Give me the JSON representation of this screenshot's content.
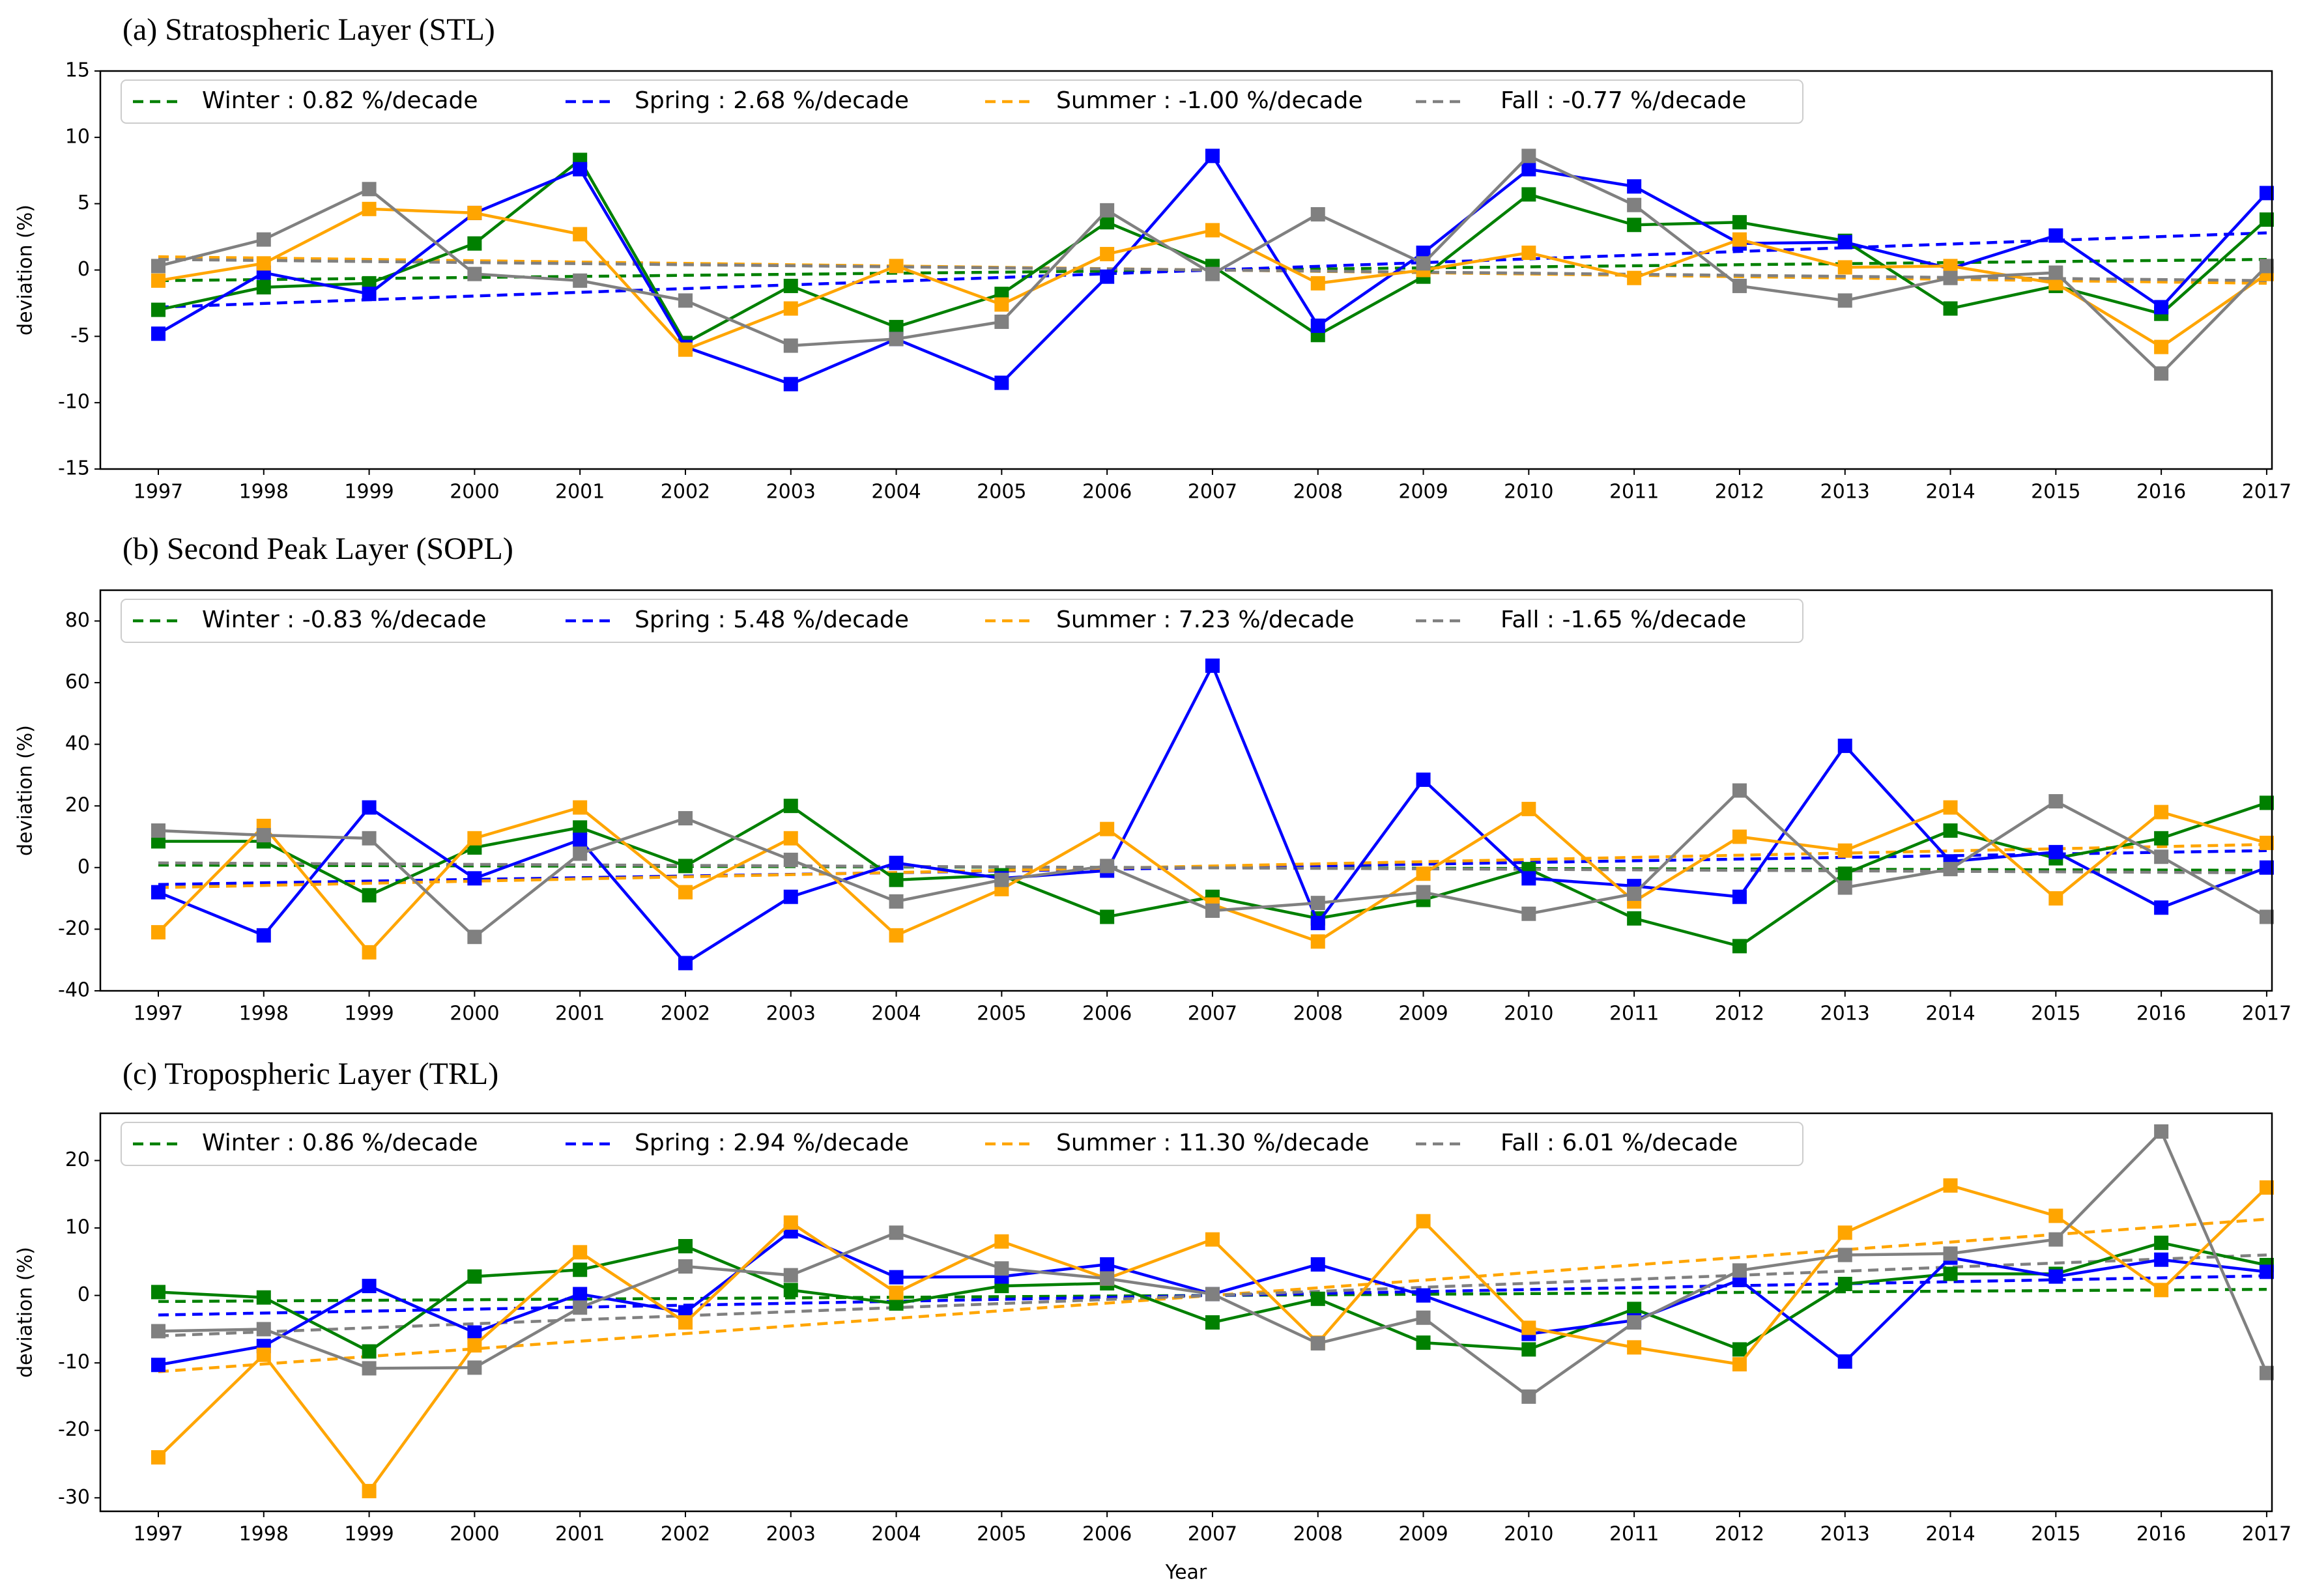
{
  "chart_data": [
    {
      "type": "line",
      "title": "(a) Stratospheric Layer (STL)",
      "ylabel": "deviation (%)",
      "x": [
        1997,
        1998,
        1999,
        2000,
        2001,
        2002,
        2003,
        2004,
        2005,
        2006,
        2007,
        2008,
        2009,
        2010,
        2011,
        2012,
        2013,
        2014,
        2015,
        2016,
        2017
      ],
      "xlim": [
        1996.45,
        2017.05
      ],
      "xticks": [
        1997,
        1998,
        1999,
        2000,
        2001,
        2002,
        2003,
        2004,
        2005,
        2006,
        2007,
        2008,
        2009,
        2010,
        2011,
        2012,
        2013,
        2014,
        2015,
        2016,
        2017
      ],
      "ylim": [
        -15,
        15
      ],
      "yticks": [
        -15,
        -10,
        -5,
        0,
        5,
        10,
        15
      ],
      "series": [
        {
          "name": "Winter : 0.82 %/decade",
          "color": "#008000",
          "values": [
            -3,
            -1.3,
            -1,
            2,
            8.3,
            -5.5,
            -1.2,
            -4.3,
            -1.8,
            3.6,
            0.3,
            -4.9,
            -0.5,
            5.7,
            3.4,
            3.6,
            2.2,
            -2.9,
            -1.2,
            -3.3,
            3.8
          ],
          "trend": [
            -0.8,
            0.8
          ]
        },
        {
          "name": "Spring : 2.68 %/decade",
          "color": "#0000ff",
          "values": [
            -4.8,
            -0.2,
            -1.8,
            4.3,
            7.6,
            -5.8,
            -8.6,
            -5.2,
            -8.5,
            -0.5,
            8.6,
            -4.2,
            1.3,
            7.6,
            6.3,
            2,
            2.1,
            0.1,
            2.6,
            -2.8,
            5.8
          ],
          "trend": [
            -2.8,
            2.8
          ]
        },
        {
          "name": "Summer : -1.00 %/decade",
          "color": "#ffa500",
          "values": [
            -0.8,
            0.5,
            4.6,
            4.3,
            2.7,
            -6,
            -2.9,
            0.3,
            -2.6,
            1.2,
            3,
            -1,
            0,
            1.3,
            -0.6,
            2.3,
            0.2,
            0.3,
            -1,
            -5.8,
            -0.3
          ],
          "trend": [
            1.0,
            -1.0
          ]
        },
        {
          "name": "Fall : -0.77 %/decade",
          "color": "#808080",
          "values": [
            0.3,
            2.3,
            6.1,
            -0.3,
            -0.8,
            -2.3,
            -5.7,
            -5.2,
            -3.9,
            4.5,
            -0.3,
            4.2,
            0.5,
            8.6,
            4.9,
            -1.2,
            -2.3,
            -0.6,
            -0.2,
            -7.8,
            0.3
          ],
          "trend": [
            0.8,
            -0.8
          ]
        }
      ]
    },
    {
      "type": "line",
      "title": "(b) Second Peak Layer (SOPL)",
      "ylabel": "deviation (%)",
      "x": [
        1997,
        1998,
        1999,
        2000,
        2001,
        2002,
        2003,
        2004,
        2005,
        2006,
        2007,
        2008,
        2009,
        2010,
        2011,
        2012,
        2013,
        2014,
        2015,
        2016,
        2017
      ],
      "xlim": [
        1996.45,
        2017.05
      ],
      "xticks": [
        1997,
        1998,
        1999,
        2000,
        2001,
        2002,
        2003,
        2004,
        2005,
        2006,
        2007,
        2008,
        2009,
        2010,
        2011,
        2012,
        2013,
        2014,
        2015,
        2016,
        2017
      ],
      "ylim": [
        -40,
        90
      ],
      "yticks": [
        -40,
        -20,
        0,
        20,
        40,
        60,
        80
      ],
      "series": [
        {
          "name": "Winter : -0.83 %/decade",
          "color": "#008000",
          "values": [
            8.5,
            8.5,
            -9,
            6.5,
            13,
            0.5,
            20,
            -4,
            -2.5,
            -16,
            -9.5,
            -16.5,
            -10.5,
            -0.5,
            -16.5,
            -25.5,
            -2,
            12,
            3,
            9.5,
            21
          ],
          "trend": [
            0.8,
            -0.9
          ]
        },
        {
          "name": "Spring : 5.48 %/decade",
          "color": "#0000ff",
          "values": [
            -8,
            -22,
            19.5,
            -3.5,
            9,
            -31,
            -9.5,
            1.5,
            -3.5,
            -1,
            65.5,
            -18,
            28.5,
            -3.5,
            -6,
            -9.5,
            39.5,
            2,
            5,
            -13,
            0
          ],
          "trend": [
            -5.5,
            5.5
          ]
        },
        {
          "name": "Summer : 7.23 %/decade",
          "color": "#ffa500",
          "values": [
            -21,
            13.5,
            -27.5,
            9.5,
            19.5,
            -8,
            9.5,
            -22,
            -7,
            12.5,
            -12,
            -24,
            -2,
            19,
            -11,
            10,
            5.5,
            19.5,
            -10,
            18,
            8
          ],
          "trend": [
            -6.5,
            7.5
          ]
        },
        {
          "name": "Fall : -1.65 %/decade",
          "color": "#808080",
          "values": [
            12,
            10.5,
            9.5,
            -22.5,
            4.5,
            16,
            2.5,
            -11,
            -4,
            0.5,
            -14,
            -11.5,
            -8,
            -15,
            -8.5,
            25,
            -6.5,
            -0.5,
            21.5,
            3.5,
            -16
          ],
          "trend": [
            1.5,
            -1.7
          ]
        }
      ]
    },
    {
      "type": "line",
      "title": "(c) Tropospheric Layer (TRL)",
      "ylabel": "deviation (%)",
      "xlabel": "Year",
      "x": [
        1997,
        1998,
        1999,
        2000,
        2001,
        2002,
        2003,
        2004,
        2005,
        2006,
        2007,
        2008,
        2009,
        2010,
        2011,
        2012,
        2013,
        2014,
        2015,
        2016,
        2017
      ],
      "xlim": [
        1996.45,
        2017.05
      ],
      "xticks": [
        1997,
        1998,
        1999,
        2000,
        2001,
        2002,
        2003,
        2004,
        2005,
        2006,
        2007,
        2008,
        2009,
        2010,
        2011,
        2012,
        2013,
        2014,
        2015,
        2016,
        2017
      ],
      "ylim": [
        -32,
        27
      ],
      "yticks": [
        -30,
        -20,
        -10,
        0,
        10,
        20
      ],
      "series": [
        {
          "name": "Winter : 0.86 %/decade",
          "color": "#008000",
          "values": [
            0.5,
            -0.3,
            -8.3,
            2.8,
            3.8,
            7.3,
            0.8,
            -1.2,
            1.4,
            1.8,
            -4,
            -0.5,
            -7,
            -8,
            -2,
            -8,
            1.7,
            3.2,
            3.2,
            7.8,
            4.5
          ],
          "trend": [
            -0.9,
            0.9
          ]
        },
        {
          "name": "Spring : 2.94 %/decade",
          "color": "#0000ff",
          "values": [
            -10.3,
            -7.5,
            1.4,
            -5.5,
            0.2,
            -2.5,
            9.5,
            2.7,
            2.8,
            4.6,
            0.2,
            4.6,
            0,
            -5.7,
            -3.7,
            2.3,
            -9.8,
            5.6,
            2.8,
            5.3,
            3.5
          ],
          "trend": [
            -2.9,
            2.9
          ]
        },
        {
          "name": "Summer : 11.30 %/decade",
          "color": "#ffa500",
          "values": [
            -24,
            -8.8,
            -29,
            -7.4,
            6.4,
            -4,
            10.8,
            0.4,
            8,
            2.5,
            8.3,
            -7,
            11,
            -4.8,
            -7.7,
            -10.2,
            9.3,
            16.3,
            11.8,
            0.8,
            16
          ],
          "trend": [
            -11.3,
            11.3
          ]
        },
        {
          "name": "Fall : 6.01 %/decade",
          "color": "#808080",
          "values": [
            -5.3,
            -5,
            -10.8,
            -10.7,
            -1.8,
            4.3,
            3,
            9.3,
            4,
            2.5,
            0.2,
            -7.1,
            -3.3,
            -15,
            -4,
            3.7,
            6,
            6.2,
            8.3,
            24.3,
            -11.5
          ],
          "trend": [
            -6,
            6
          ]
        }
      ]
    }
  ]
}
